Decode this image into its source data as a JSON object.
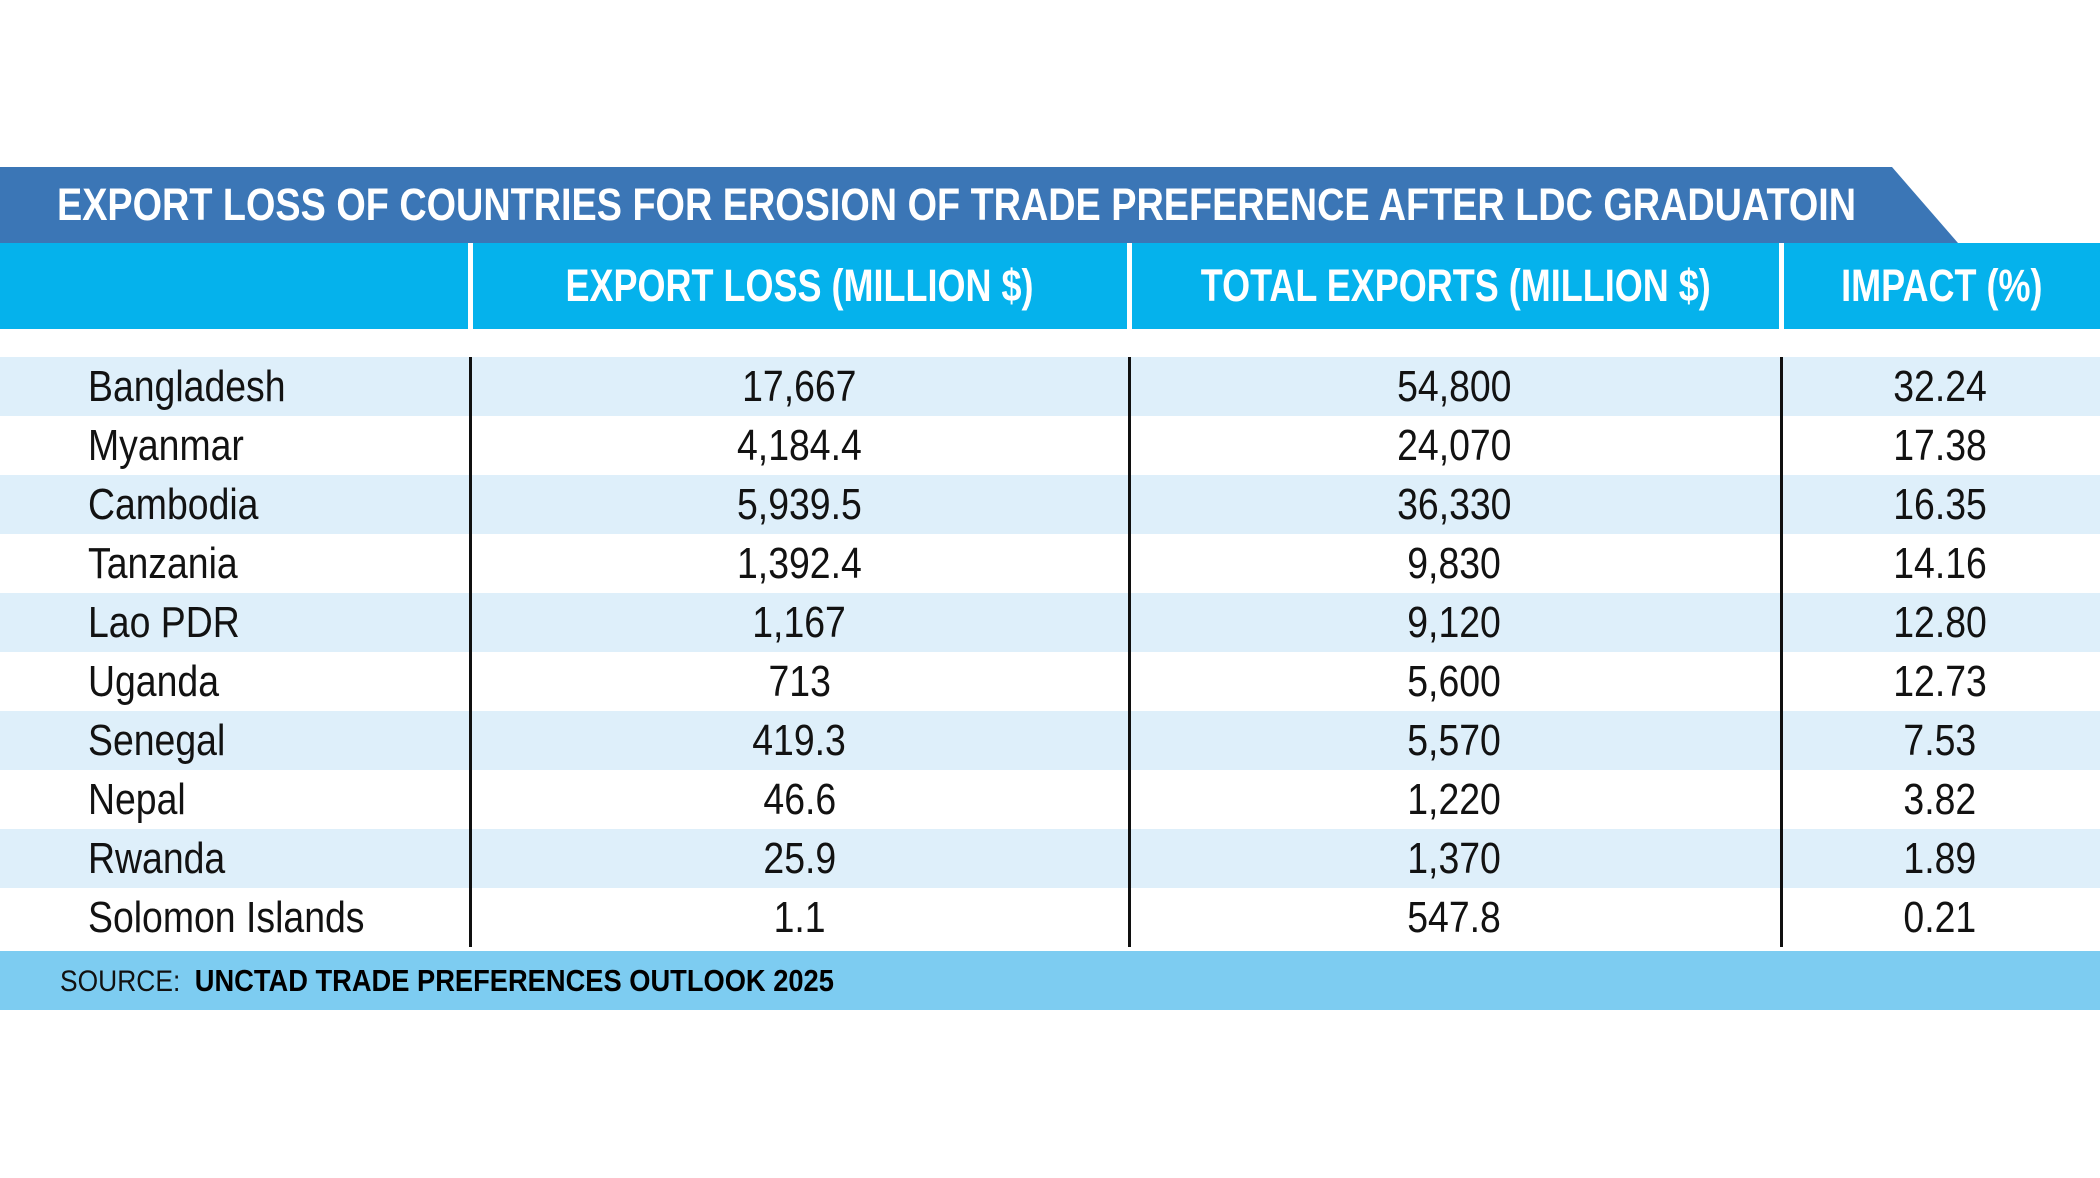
{
  "title": "EXPORT LOSS OF COUNTRIES FOR EROSION OF TRADE PREFERENCE AFTER LDC GRADUATOIN",
  "colors": {
    "banner": "#3B76B6",
    "header": "#05B2EC",
    "row_alt": "#DEEFFA",
    "footer": "#7DCCF1",
    "ink": "#121212"
  },
  "table": {
    "columns": [
      "",
      "EXPORT LOSS (MILLION $)",
      "TOTAL EXPORTS (MILLION $)",
      "IMPACT (%)"
    ],
    "rows": [
      {
        "country": "Bangladesh",
        "export_loss": "17,667",
        "total_exports": "54,800",
        "impact": "32.24"
      },
      {
        "country": "Myanmar",
        "export_loss": "4,184.4",
        "total_exports": "24,070",
        "impact": "17.38"
      },
      {
        "country": "Cambodia",
        "export_loss": "5,939.5",
        "total_exports": "36,330",
        "impact": "16.35"
      },
      {
        "country": "Tanzania",
        "export_loss": "1,392.4",
        "total_exports": "9,830",
        "impact": "14.16"
      },
      {
        "country": "Lao PDR",
        "export_loss": "1,167",
        "total_exports": "9,120",
        "impact": "12.80"
      },
      {
        "country": "Uganda",
        "export_loss": "713",
        "total_exports": "5,600",
        "impact": "12.73"
      },
      {
        "country": "Senegal",
        "export_loss": "419.3",
        "total_exports": "5,570",
        "impact": "7.53"
      },
      {
        "country": "Nepal",
        "export_loss": "46.6",
        "total_exports": "1,220",
        "impact": "3.82"
      },
      {
        "country": "Rwanda",
        "export_loss": "25.9",
        "total_exports": "1,370",
        "impact": "1.89"
      },
      {
        "country": "Solomon Islands",
        "export_loss": "1.1",
        "total_exports": "547.8",
        "impact": "0.21"
      }
    ]
  },
  "source": {
    "prefix": "SOURCE:",
    "text": "UNCTAD TRADE PREFERENCES OUTLOOK 2025"
  },
  "chart_data": {
    "type": "table",
    "title": "EXPORT LOSS OF COUNTRIES FOR EROSION OF TRADE PREFERENCE AFTER LDC GRADUATOIN",
    "categories": [
      "Bangladesh",
      "Myanmar",
      "Cambodia",
      "Tanzania",
      "Lao PDR",
      "Uganda",
      "Senegal",
      "Nepal",
      "Rwanda",
      "Solomon Islands"
    ],
    "series": [
      {
        "name": "EXPORT LOSS (MILLION $)",
        "values": [
          17667,
          4184.4,
          5939.5,
          1392.4,
          1167,
          713,
          419.3,
          46.6,
          25.9,
          1.1
        ]
      },
      {
        "name": "TOTAL EXPORTS (MILLION $)",
        "values": [
          54800,
          24070,
          36330,
          9830,
          9120,
          5600,
          5570,
          1220,
          1370,
          547.8
        ]
      },
      {
        "name": "IMPACT (%)",
        "values": [
          32.24,
          17.38,
          16.35,
          14.16,
          12.8,
          12.73,
          7.53,
          3.82,
          1.89,
          0.21
        ]
      }
    ],
    "source": "SOURCE: UNCTAD TRADE PREFERENCES OUTLOOK 2025"
  }
}
